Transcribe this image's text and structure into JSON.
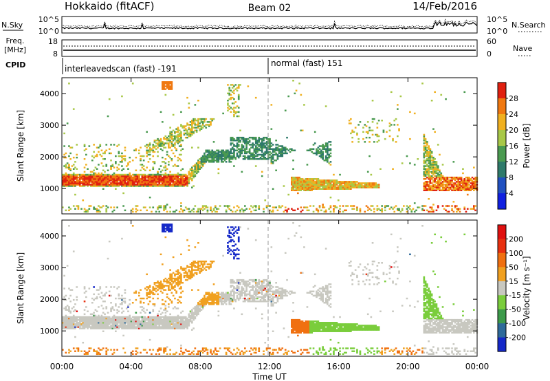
{
  "header": {
    "station": "Hokkaido (fitACF)",
    "beam": "Beam 02",
    "date": "14/Feb/2016"
  },
  "panels": {
    "nsky": {
      "label": "N.Sky",
      "right_label": "N.Search",
      "ticks_left": [
        "10^5",
        "10^0"
      ],
      "ticks_right": [
        "10^5",
        "10^0"
      ]
    },
    "freq": {
      "label_top": "Freq.",
      "label_bottom": "[MHz]",
      "right_label": "Nave",
      "ticks_left": [
        "18",
        "8"
      ],
      "ticks_right": [
        "60",
        "0"
      ]
    },
    "cpid": {
      "label": "CPID",
      "modes": [
        {
          "text": "interleavedscan (fast) -191",
          "start_hour": 0
        },
        {
          "text": "normal (fast) 151",
          "start_hour": 12
        }
      ]
    }
  },
  "chart_data": [
    {
      "type": "heatmap",
      "quantity": "power",
      "ylabel": "Slant Range [km]",
      "xlim": [
        0,
        24
      ],
      "ylim": [
        200,
        4500
      ],
      "yticks": [
        1000,
        2000,
        3000,
        4000
      ],
      "colorbar": {
        "label": "Power [dB]",
        "ticks": [
          "4",
          "8",
          "12",
          "16",
          "20",
          "24",
          "28"
        ],
        "colors": [
          "#1020e0",
          "#2050c0",
          "#2e7a6a",
          "#4a9a50",
          "#a8c848",
          "#f0b020",
          "#f07810",
          "#e02010"
        ]
      }
    },
    {
      "type": "heatmap",
      "quantity": "velocity",
      "ylabel": "Slant Range [km]",
      "xlabel": "Time UT",
      "xlim": [
        0,
        24
      ],
      "ylim": [
        200,
        4500
      ],
      "yticks": [
        1000,
        2000,
        3000,
        4000
      ],
      "xticks": [
        "00:00",
        "04:00",
        "08:00",
        "12:00",
        "16:00",
        "20:00",
        "00:00"
      ],
      "colorbar": {
        "label": "Velocity [m s⁻¹]",
        "ticks": [
          "200",
          "100",
          "50",
          "15",
          "-15",
          "-50",
          "-100",
          "-200"
        ],
        "colors": [
          "#1428c8",
          "#2e6a9a",
          "#3c9a4a",
          "#7acd3c",
          "#c8c8c0",
          "#f0a020",
          "#f07010",
          "#e83010",
          "#e01010"
        ]
      }
    }
  ]
}
